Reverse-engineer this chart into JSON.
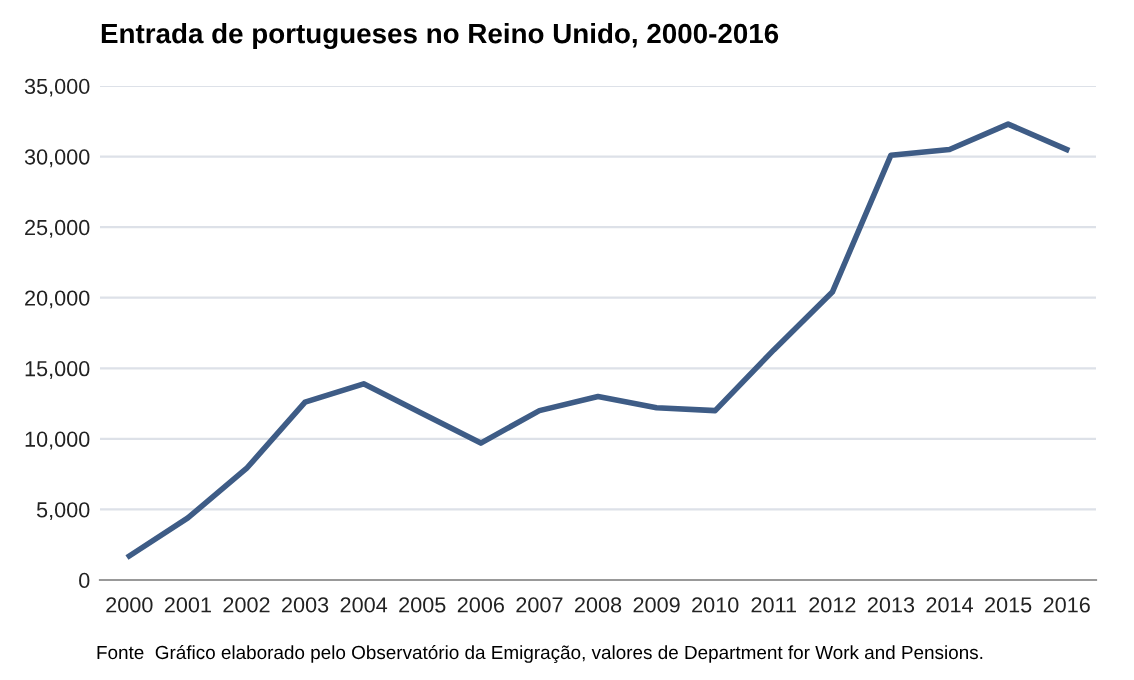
{
  "chart_data": {
    "type": "line",
    "title": "Entrada de portugueses no Reino Unido, 2000-2016",
    "categories": [
      "2000",
      "2001",
      "2002",
      "2003",
      "2004",
      "2005",
      "2006",
      "2007",
      "2008",
      "2009",
      "2010",
      "2011",
      "2012",
      "2013",
      "2014",
      "2015",
      "2016"
    ],
    "series": [
      {
        "color": "#3e5c86",
        "values": [
          1700,
          4400,
          7900,
          12600,
          13900,
          11800,
          9700,
          12000,
          13000,
          12200,
          12000,
          16300,
          20400,
          30100,
          30500,
          32300,
          30500
        ]
      }
    ],
    "ylim": [
      0,
      35000
    ],
    "yticks": [
      0,
      {
        "value": 5000,
        "label": "5,000"
      },
      {
        "value": 10000,
        "label": "10,000"
      },
      {
        "value": 15000,
        "label": "15,000"
      },
      {
        "value": 20000,
        "label": "20,000"
      },
      {
        "value": 25000,
        "label": "25,000"
      },
      {
        "value": 30000,
        "label": "30,000"
      },
      {
        "value": 35000,
        "label": "35,000"
      }
    ],
    "grid": "y",
    "marker": "none",
    "line_style": "solid",
    "annotations": [
      "Fonte  Gráfico elaborado pelo Observatório da Emigração, valores de Department for Work and Pensions."
    ]
  }
}
